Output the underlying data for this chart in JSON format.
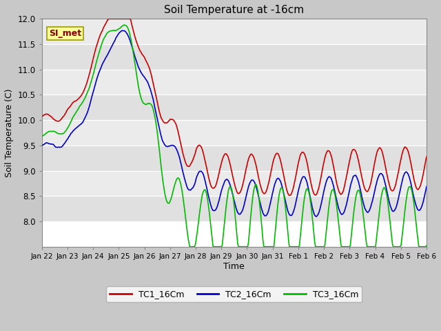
{
  "title": "Soil Temperature at -16cm",
  "xlabel": "Time",
  "ylabel": "Soil Temperature (C)",
  "ylim": [
    7.5,
    12.0
  ],
  "yticks": [
    8.0,
    8.5,
    9.0,
    9.5,
    10.0,
    10.5,
    11.0,
    11.5,
    12.0
  ],
  "legend_labels": [
    "TC1_16Cm",
    "TC2_16Cm",
    "TC3_16Cm"
  ],
  "line_colors": [
    "#cc0000",
    "#0000cc",
    "#00bb00"
  ],
  "line_width": 1.2,
  "annotation_text": "SI_met",
  "annotation_color": "#880000",
  "annotation_bg": "#ffff99",
  "annotation_border": "#999900",
  "fig_bg": "#c8c8c8",
  "band_colors": [
    "#e0e0e0",
    "#ebebeb"
  ],
  "grid_color": "#ffffff",
  "xtick_labels": [
    "Jan 22",
    "Jan 23",
    "Jan 24",
    "Jan 25",
    "Jan 26",
    "Jan 27",
    "Jan 28",
    "Jan 29",
    "Jan 30",
    "Jan 31",
    "Feb 1",
    "Feb 2",
    "Feb 3",
    "Feb 4",
    "Feb 5",
    "Feb 6"
  ],
  "n_points": 500
}
